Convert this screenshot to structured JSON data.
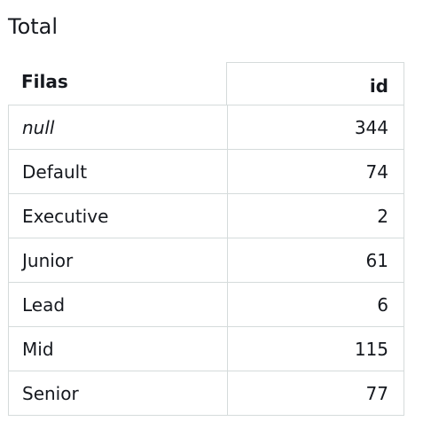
{
  "title": "Total",
  "table": {
    "row_header": "Filas",
    "column_header": "id",
    "rows": [
      {
        "label": "null",
        "value": "344"
      },
      {
        "label": "Default",
        "value": "74"
      },
      {
        "label": "Executive",
        "value": "2"
      },
      {
        "label": "Junior",
        "value": "61"
      },
      {
        "label": "Lead",
        "value": "6"
      },
      {
        "label": "Mid",
        "value": "115"
      },
      {
        "label": "Senior",
        "value": "77"
      }
    ]
  }
}
